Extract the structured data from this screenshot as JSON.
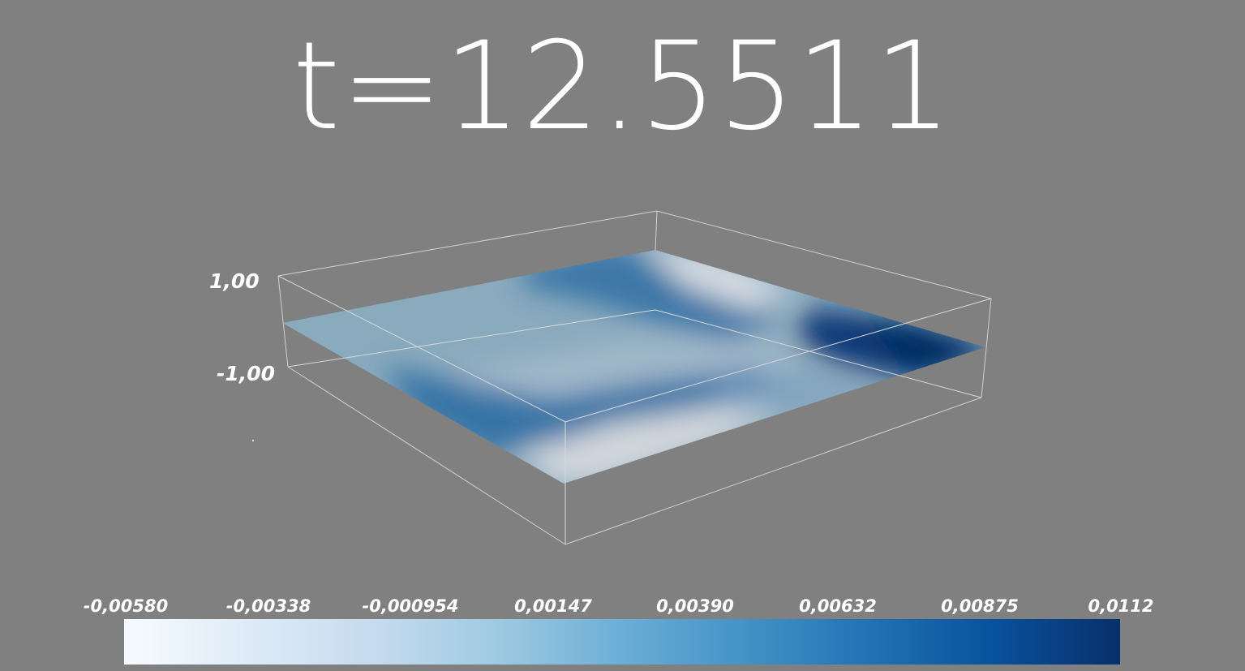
{
  "title": {
    "time_text": "t=12.5511"
  },
  "axes": {
    "z_max_label": "1,00",
    "z_min_label": "-1,00"
  },
  "colorbar": {
    "colormap": "Blues",
    "colors": [
      "#f7fbff",
      "#deebf7",
      "#c6dbef",
      "#9ecae1",
      "#6baed6",
      "#4292c6",
      "#2171b5",
      "#08519c",
      "#08306b"
    ],
    "range": [
      -0.0058,
      0.0112
    ],
    "tick_labels": [
      "-0,00580",
      "-0,00338",
      "-0,000954",
      "0,00147",
      "0,00390",
      "0,00632",
      "0,00875",
      "0,0112"
    ]
  },
  "background_color": "#808080"
}
